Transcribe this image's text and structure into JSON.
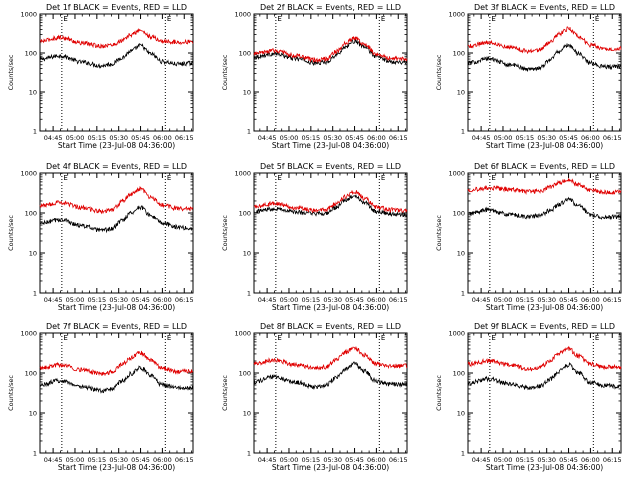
{
  "figure": {
    "background": "#ffffff",
    "axis_color": "#000000",
    "series_colors": {
      "events": "#000000",
      "lld": "#e00000"
    }
  },
  "chart_data": [
    {
      "type": "line",
      "title": "Det 1f BLACK = Events, RED = LLD",
      "xlabel": "Start Time (23-Jul-08 04:36:00)",
      "ylabel": "Counts/sec",
      "yscale": "log",
      "ylim": [
        1,
        1000
      ],
      "y_ticks": [
        "1",
        "10",
        "100",
        "1000"
      ],
      "x_ticks": [
        "04:45",
        "05:00",
        "05:15",
        "05:30",
        "05:45",
        "06:00",
        "06:15"
      ],
      "x_tick_minutes": [
        285,
        300,
        315,
        330,
        345,
        360,
        375
      ],
      "xlim_minutes": [
        276,
        381
      ],
      "vlines_minutes": [
        291,
        362
      ],
      "vline_labels": [
        "E",
        "E"
      ],
      "x_minutes": [
        276,
        290,
        305,
        318,
        325,
        333,
        338,
        345,
        352,
        360,
        370,
        381
      ],
      "series": [
        {
          "key": "events",
          "color": "#000000",
          "values": [
            70,
            85,
            58,
            47,
            52,
            78,
            110,
            155,
            95,
            60,
            52,
            55
          ]
        },
        {
          "key": "lld",
          "color": "#e00000",
          "values": [
            200,
            250,
            180,
            150,
            160,
            210,
            290,
            380,
            260,
            200,
            190,
            195
          ]
        }
      ]
    },
    {
      "type": "line",
      "title": "Det 2f BLACK = Events, RED = LLD",
      "xlabel": "Start Time (23-Jul-08 04:36:00)",
      "ylabel": "Counts/sec",
      "yscale": "log",
      "ylim": [
        1,
        1000
      ],
      "y_ticks": [
        "1",
        "10",
        "100",
        "1000"
      ],
      "x_ticks": [
        "04:45",
        "05:00",
        "05:15",
        "05:30",
        "05:45",
        "06:00",
        "06:15"
      ],
      "x_tick_minutes": [
        285,
        300,
        315,
        330,
        345,
        360,
        375
      ],
      "xlim_minutes": [
        276,
        381
      ],
      "vlines_minutes": [
        291,
        362
      ],
      "vline_labels": [
        "E",
        "E"
      ],
      "x_minutes": [
        276,
        290,
        305,
        318,
        325,
        333,
        338,
        345,
        352,
        360,
        370,
        381
      ],
      "series": [
        {
          "key": "events",
          "color": "#000000",
          "values": [
            80,
            95,
            72,
            55,
            58,
            90,
            140,
            200,
            140,
            80,
            60,
            58
          ]
        },
        {
          "key": "lld",
          "color": "#e00000",
          "values": [
            95,
            115,
            85,
            65,
            70,
            110,
            170,
            240,
            165,
            95,
            72,
            70
          ]
        }
      ]
    },
    {
      "type": "line",
      "title": "Det 3f BLACK = Events, RED = LLD",
      "xlabel": "Start Time (23-Jul-08 04:36:00)",
      "ylabel": "Counts/sec",
      "yscale": "log",
      "ylim": [
        1,
        1000
      ],
      "y_ticks": [
        "1",
        "10",
        "100",
        "1000"
      ],
      "x_ticks": [
        "04:45",
        "05:00",
        "05:15",
        "05:30",
        "05:45",
        "06:00",
        "06:15"
      ],
      "x_tick_minutes": [
        285,
        300,
        315,
        330,
        345,
        360,
        375
      ],
      "xlim_minutes": [
        276,
        381
      ],
      "vlines_minutes": [
        291,
        362
      ],
      "vline_labels": [
        "E",
        "E"
      ],
      "x_minutes": [
        276,
        290,
        305,
        318,
        325,
        333,
        338,
        345,
        352,
        360,
        370,
        381
      ],
      "series": [
        {
          "key": "events",
          "color": "#000000",
          "values": [
            55,
            72,
            50,
            38,
            42,
            70,
            110,
            160,
            95,
            55,
            44,
            45
          ]
        },
        {
          "key": "lld",
          "color": "#e00000",
          "values": [
            150,
            190,
            140,
            110,
            120,
            200,
            300,
            420,
            260,
            160,
            130,
            130
          ]
        }
      ]
    },
    {
      "type": "line",
      "title": "Det 4f BLACK = Events, RED = LLD",
      "xlabel": "Start Time (23-Jul-08 04:36:00)",
      "ylabel": "Counts/sec",
      "yscale": "log",
      "ylim": [
        1,
        1000
      ],
      "y_ticks": [
        "1",
        "10",
        "100",
        "1000"
      ],
      "x_ticks": [
        "04:45",
        "05:00",
        "05:15",
        "05:30",
        "05:45",
        "06:00",
        "06:15"
      ],
      "x_tick_minutes": [
        285,
        300,
        315,
        330,
        345,
        360,
        375
      ],
      "xlim_minutes": [
        276,
        381
      ],
      "vlines_minutes": [
        291,
        362
      ],
      "vline_labels": [
        "E",
        "E"
      ],
      "x_minutes": [
        276,
        290,
        305,
        318,
        325,
        333,
        338,
        345,
        352,
        360,
        370,
        381
      ],
      "series": [
        {
          "key": "events",
          "color": "#000000",
          "values": [
            55,
            68,
            48,
            36,
            40,
            68,
            100,
            140,
            85,
            55,
            45,
            40
          ]
        },
        {
          "key": "lld",
          "color": "#e00000",
          "values": [
            150,
            185,
            135,
            110,
            120,
            200,
            290,
            400,
            250,
            160,
            130,
            125
          ]
        }
      ]
    },
    {
      "type": "line",
      "title": "Det 5f BLACK = Events, RED = LLD",
      "xlabel": "Start Time (23-Jul-08 04:36:00)",
      "ylabel": "Counts/sec",
      "yscale": "log",
      "ylim": [
        1,
        1000
      ],
      "y_ticks": [
        "1",
        "10",
        "100",
        "1000"
      ],
      "x_ticks": [
        "04:45",
        "05:00",
        "05:15",
        "05:30",
        "05:45",
        "06:00",
        "06:15"
      ],
      "x_tick_minutes": [
        285,
        300,
        315,
        330,
        345,
        360,
        375
      ],
      "xlim_minutes": [
        276,
        381
      ],
      "vlines_minutes": [
        291,
        362
      ],
      "vline_labels": [
        "E",
        "E"
      ],
      "x_minutes": [
        276,
        290,
        305,
        318,
        325,
        333,
        338,
        345,
        352,
        360,
        370,
        381
      ],
      "series": [
        {
          "key": "events",
          "color": "#000000",
          "values": [
            110,
            130,
            105,
            95,
            98,
            140,
            200,
            270,
            180,
            110,
            95,
            90
          ]
        },
        {
          "key": "lld",
          "color": "#e00000",
          "values": [
            140,
            175,
            135,
            115,
            120,
            175,
            250,
            340,
            230,
            140,
            120,
            115
          ]
        }
      ]
    },
    {
      "type": "line",
      "title": "Det 6f BLACK = Events, RED = LLD",
      "xlabel": "Start Time (23-Jul-08 04:36:00)",
      "ylabel": "Counts/sec",
      "yscale": "log",
      "ylim": [
        1,
        1000
      ],
      "y_ticks": [
        "1",
        "10",
        "100",
        "1000"
      ],
      "x_ticks": [
        "04:45",
        "05:00",
        "05:15",
        "05:30",
        "05:45",
        "06:00",
        "06:15"
      ],
      "x_tick_minutes": [
        285,
        300,
        315,
        330,
        345,
        360,
        375
      ],
      "xlim_minutes": [
        276,
        381
      ],
      "vlines_minutes": [
        291,
        362
      ],
      "vline_labels": [
        "E",
        "E"
      ],
      "x_minutes": [
        276,
        290,
        305,
        318,
        325,
        333,
        338,
        345,
        352,
        360,
        370,
        381
      ],
      "series": [
        {
          "key": "events",
          "color": "#000000",
          "values": [
            95,
            120,
            90,
            80,
            85,
            120,
            160,
            220,
            150,
            90,
            78,
            80
          ]
        },
        {
          "key": "lld",
          "color": "#e00000",
          "values": [
            380,
            420,
            390,
            340,
            350,
            450,
            560,
            680,
            500,
            380,
            330,
            330
          ]
        }
      ]
    },
    {
      "type": "line",
      "title": "Det 7f BLACK = Events, RED = LLD",
      "xlabel": "Start Time (23-Jul-08 04:36:00)",
      "ylabel": "Counts/sec",
      "yscale": "log",
      "ylim": [
        1,
        1000
      ],
      "y_ticks": [
        "1",
        "10",
        "100",
        "1000"
      ],
      "x_ticks": [
        "04:45",
        "05:00",
        "05:15",
        "05:30",
        "05:45",
        "06:00",
        "06:15"
      ],
      "x_tick_minutes": [
        285,
        300,
        315,
        330,
        345,
        360,
        375
      ],
      "xlim_minutes": [
        276,
        381
      ],
      "vlines_minutes": [
        291,
        362
      ],
      "vline_labels": [
        "E",
        "E"
      ],
      "x_minutes": [
        276,
        290,
        305,
        318,
        325,
        333,
        338,
        345,
        352,
        360,
        370,
        381
      ],
      "series": [
        {
          "key": "events",
          "color": "#000000",
          "values": [
            50,
            65,
            45,
            36,
            40,
            65,
            95,
            135,
            85,
            50,
            42,
            42
          ]
        },
        {
          "key": "lld",
          "color": "#e00000",
          "values": [
            130,
            160,
            120,
            95,
            105,
            170,
            240,
            320,
            210,
            130,
            110,
            110
          ]
        }
      ]
    },
    {
      "type": "line",
      "title": "Det 8f BLACK = Events, RED = LLD",
      "xlabel": "Start Time (23-Jul-08 04:36:00)",
      "ylabel": "Counts/sec",
      "yscale": "log",
      "ylim": [
        1,
        1000
      ],
      "y_ticks": [
        "1",
        "10",
        "100",
        "1000"
      ],
      "x_ticks": [
        "04:45",
        "05:00",
        "05:15",
        "05:30",
        "05:45",
        "06:00",
        "06:15"
      ],
      "x_tick_minutes": [
        285,
        300,
        315,
        330,
        345,
        360,
        375
      ],
      "xlim_minutes": [
        276,
        381
      ],
      "vlines_minutes": [
        291,
        362
      ],
      "vline_labels": [
        "E",
        "E"
      ],
      "x_minutes": [
        276,
        290,
        305,
        318,
        325,
        333,
        338,
        345,
        352,
        360,
        370,
        381
      ],
      "series": [
        {
          "key": "events",
          "color": "#000000",
          "values": [
            60,
            80,
            58,
            45,
            50,
            80,
            120,
            170,
            110,
            62,
            52,
            52
          ]
        },
        {
          "key": "lld",
          "color": "#e00000",
          "values": [
            170,
            210,
            160,
            130,
            140,
            220,
            320,
            430,
            280,
            170,
            150,
            150
          ]
        }
      ]
    },
    {
      "type": "line",
      "title": "Det 9f BLACK = Events, RED = LLD",
      "xlabel": "Start Time (23-Jul-08 04:36:00)",
      "ylabel": "Counts/sec",
      "yscale": "log",
      "ylim": [
        1,
        1000
      ],
      "y_ticks": [
        "1",
        "10",
        "100",
        "1000"
      ],
      "x_ticks": [
        "04:45",
        "05:00",
        "05:15",
        "05:30",
        "05:45",
        "06:00",
        "06:15"
      ],
      "x_tick_minutes": [
        285,
        300,
        315,
        330,
        345,
        360,
        375
      ],
      "xlim_minutes": [
        276,
        381
      ],
      "vlines_minutes": [
        291,
        362
      ],
      "vline_labels": [
        "E",
        "E"
      ],
      "x_minutes": [
        276,
        290,
        305,
        318,
        325,
        333,
        338,
        345,
        352,
        360,
        370,
        381
      ],
      "series": [
        {
          "key": "events",
          "color": "#000000",
          "values": [
            55,
            72,
            52,
            42,
            46,
            72,
            110,
            160,
            100,
            58,
            48,
            46
          ]
        },
        {
          "key": "lld",
          "color": "#e00000",
          "values": [
            165,
            200,
            155,
            125,
            135,
            210,
            300,
            400,
            260,
            165,
            140,
            140
          ]
        }
      ]
    }
  ]
}
